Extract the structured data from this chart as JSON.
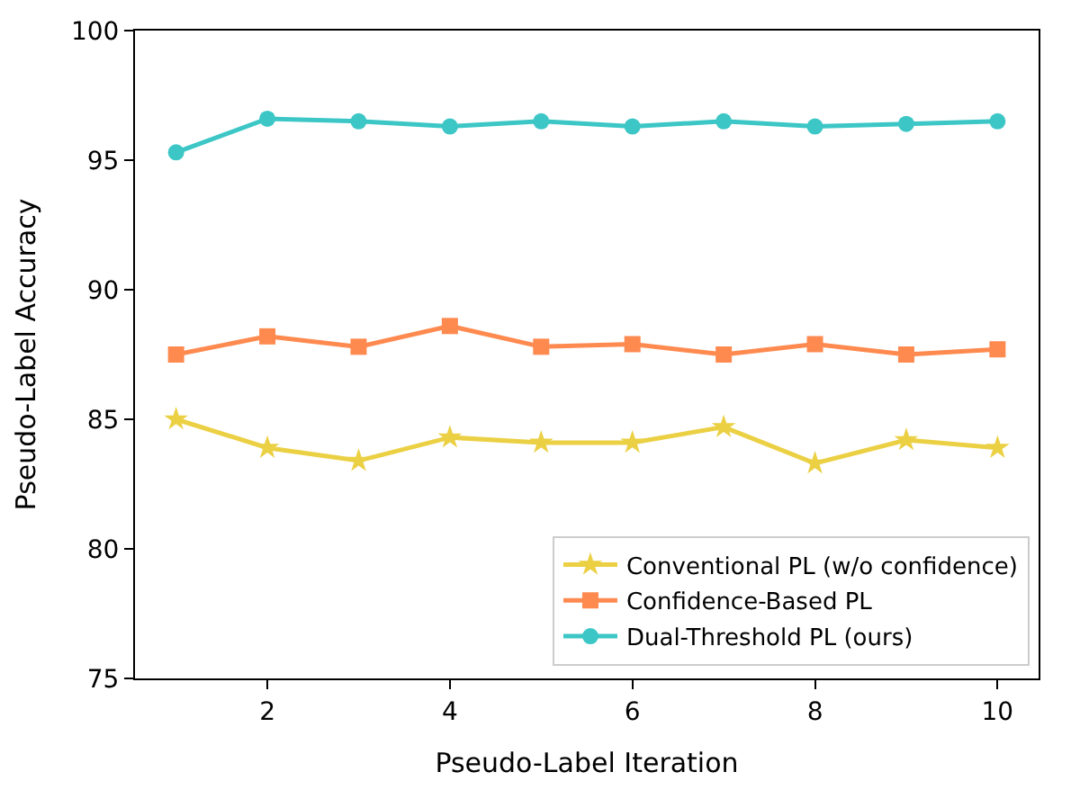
{
  "chart_data": {
    "type": "line",
    "xlabel": "Pseudo-Label Iteration",
    "ylabel": "Pseudo-Label Accuracy",
    "x": [
      1,
      2,
      3,
      4,
      5,
      6,
      7,
      8,
      9,
      10
    ],
    "series": [
      {
        "name": "Conventional PL (w/o confidence)",
        "color": "#ebd044",
        "marker": "star",
        "values": [
          85.0,
          83.9,
          83.4,
          84.3,
          84.1,
          84.1,
          84.7,
          83.3,
          84.2,
          83.9
        ]
      },
      {
        "name": "Confidence-Based PL",
        "color": "#ff8a50",
        "marker": "square",
        "values": [
          87.5,
          88.2,
          87.8,
          88.6,
          87.8,
          87.9,
          87.5,
          87.9,
          87.5,
          87.7
        ]
      },
      {
        "name": "Dual-Threshold PL (ours)",
        "color": "#3cc6c6",
        "marker": "circle",
        "values": [
          95.3,
          96.6,
          96.5,
          96.3,
          96.5,
          96.3,
          96.5,
          96.3,
          96.4,
          96.5
        ]
      }
    ],
    "xlim": [
      0.55,
      10.45
    ],
    "xticks": [
      2,
      4,
      6,
      8,
      10
    ],
    "ylim": [
      75,
      100
    ],
    "yticks": [
      75,
      80,
      85,
      90,
      95,
      100
    ],
    "legend": "bottom right",
    "line_style": "solid"
  }
}
